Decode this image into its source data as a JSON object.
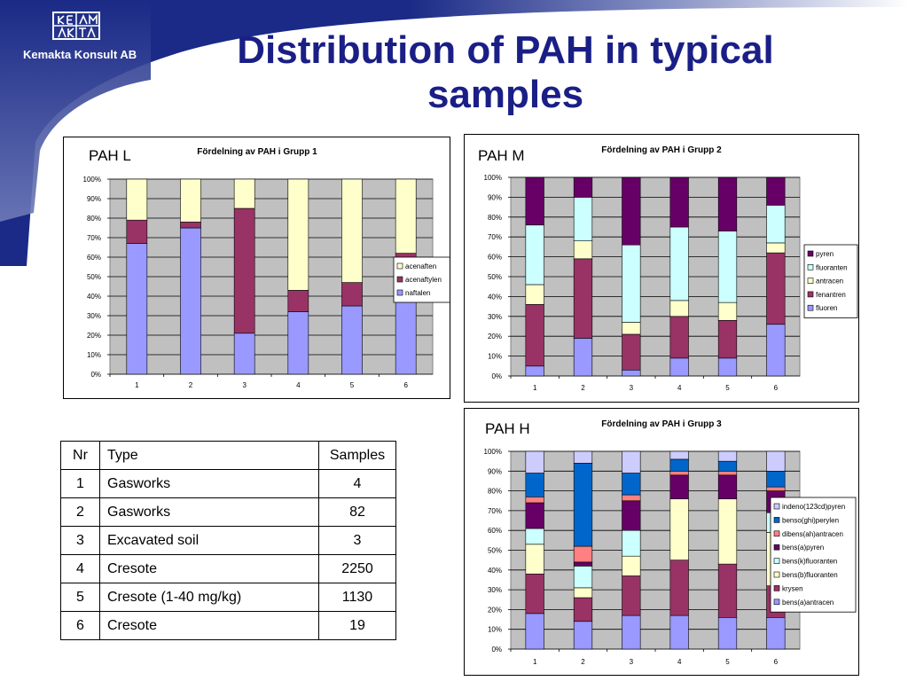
{
  "header": {
    "company_name": "Kemakta Konsult AB",
    "logo_text": "KEM AKTA",
    "title_line1": "Distribution of PAH in typical",
    "title_line2": "samples"
  },
  "colors": {
    "brand_blue": "#1a2a86",
    "title": "#1a1f86",
    "plot_background": "#c0c0c0"
  },
  "charts_meta": [
    {
      "caption": "PAH L"
    },
    {
      "caption": "PAH M"
    },
    {
      "caption": "PAH H"
    }
  ],
  "chart_data": [
    {
      "type": "bar",
      "stacked": true,
      "title": "Fördelning av PAH i Grupp 1",
      "categories": [
        "1",
        "2",
        "3",
        "4",
        "5",
        "6"
      ],
      "ylim": [
        0,
        100
      ],
      "yticks": [
        "0%",
        "10%",
        "20%",
        "30%",
        "40%",
        "50%",
        "60%",
        "70%",
        "80%",
        "90%",
        "100%"
      ],
      "grid": true,
      "legend_position": "right",
      "series": [
        {
          "name": "naftalen",
          "color": "#9999ff",
          "values": [
            67,
            75,
            21,
            32,
            35,
            58
          ]
        },
        {
          "name": "acenaftylen",
          "color": "#993366",
          "values": [
            12,
            3,
            64,
            11,
            12,
            4
          ]
        },
        {
          "name": "acenaften",
          "color": "#ffffcc",
          "values": [
            21,
            22,
            15,
            57,
            53,
            38
          ]
        }
      ]
    },
    {
      "type": "bar",
      "stacked": true,
      "title": "Fördelning av PAH i Grupp 2",
      "categories": [
        "1",
        "2",
        "3",
        "4",
        "5",
        "6"
      ],
      "ylim": [
        0,
        100
      ],
      "yticks": [
        "0%",
        "10%",
        "20%",
        "30%",
        "40%",
        "50%",
        "60%",
        "70%",
        "80%",
        "90%",
        "100%"
      ],
      "grid": true,
      "legend_position": "right",
      "series": [
        {
          "name": "fluoren",
          "color": "#9999ff",
          "values": [
            5,
            19,
            3,
            9,
            9,
            26
          ]
        },
        {
          "name": "fenantren",
          "color": "#993366",
          "values": [
            31,
            40,
            18,
            21,
            19,
            36
          ]
        },
        {
          "name": "antracen",
          "color": "#ffffcc",
          "values": [
            10,
            9,
            6,
            8,
            9,
            5
          ]
        },
        {
          "name": "fluoranten",
          "color": "#ccffff",
          "values": [
            30,
            22,
            39,
            37,
            36,
            19
          ]
        },
        {
          "name": "pyren",
          "color": "#660066",
          "values": [
            24,
            10,
            34,
            25,
            27,
            14
          ]
        }
      ]
    },
    {
      "type": "bar",
      "stacked": true,
      "title": "Fördelning av PAH i Grupp 3",
      "categories": [
        "1",
        "2",
        "3",
        "4",
        "5",
        "6"
      ],
      "ylim": [
        0,
        100
      ],
      "yticks": [
        "0%",
        "10%",
        "20%",
        "30%",
        "40%",
        "50%",
        "60%",
        "70%",
        "80%",
        "90%",
        "100%"
      ],
      "grid": true,
      "legend_position": "right",
      "series": [
        {
          "name": "bens(a)antracen",
          "color": "#9999ff",
          "values": [
            18,
            14,
            17,
            17,
            16,
            16
          ]
        },
        {
          "name": "krysen",
          "color": "#993366",
          "values": [
            20,
            12,
            20,
            28,
            27,
            16
          ]
        },
        {
          "name": "bens(b)fluoranten",
          "color": "#ffffcc",
          "values": [
            15,
            5,
            10,
            31,
            33,
            27
          ]
        },
        {
          "name": "bens(k)fluoranten",
          "color": "#ccffff",
          "values": [
            8,
            11,
            13,
            0,
            0,
            10
          ]
        },
        {
          "name": "bens(a)pyren",
          "color": "#660066",
          "values": [
            13,
            2,
            15,
            12,
            12,
            11
          ]
        },
        {
          "name": "dibens(ah)antracen",
          "color": "#ff8080",
          "values": [
            3,
            8,
            3,
            2,
            2,
            2
          ]
        },
        {
          "name": "benso(ghi)perylen",
          "color": "#0066cc",
          "values": [
            12,
            42,
            11,
            6,
            5,
            8
          ]
        },
        {
          "name": "indeno(123cd)pyren",
          "color": "#ccccff",
          "values": [
            11,
            6,
            11,
            4,
            5,
            10
          ]
        }
      ]
    }
  ],
  "table": {
    "headers": [
      "Nr",
      "Type",
      "Samples"
    ],
    "rows": [
      [
        "1",
        "Gasworks",
        "4"
      ],
      [
        "2",
        "Gasworks",
        "82"
      ],
      [
        "3",
        "Excavated soil",
        "3"
      ],
      [
        "4",
        "Cresote",
        "2250"
      ],
      [
        "5",
        "Cresote (1-40 mg/kg)",
        "1130"
      ],
      [
        "6",
        "Cresote",
        "19"
      ]
    ]
  }
}
